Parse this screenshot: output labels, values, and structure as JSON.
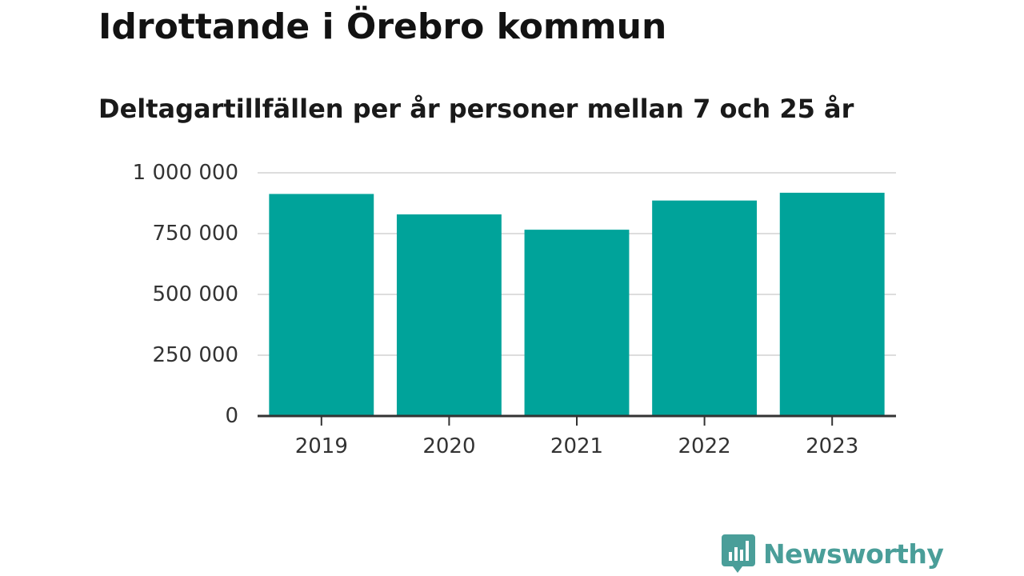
{
  "title": "Idrottande i Örebro kommun",
  "subtitle": "Deltagartillfällen per år personer mellan 7 och 25 år",
  "brand": {
    "name": "Newsworthy",
    "icon": "newsworthy-logo-icon",
    "color": "#4a9e99"
  },
  "chart_data": {
    "type": "bar",
    "categories": [
      "2019",
      "2020",
      "2021",
      "2022",
      "2023"
    ],
    "values": [
      913000,
      829000,
      766000,
      886000,
      918000
    ],
    "ylim": [
      0,
      1000000
    ],
    "yticks": [
      0,
      250000,
      500000,
      750000,
      1000000
    ],
    "ytick_labels": [
      "0",
      "250 000",
      "500 000",
      "750 000",
      "1 000 000"
    ],
    "xlabel": "",
    "ylabel": "",
    "grid": true,
    "bar_color": "#00a39a",
    "grid_color": "#dddddd",
    "axis_color": "#333333"
  }
}
